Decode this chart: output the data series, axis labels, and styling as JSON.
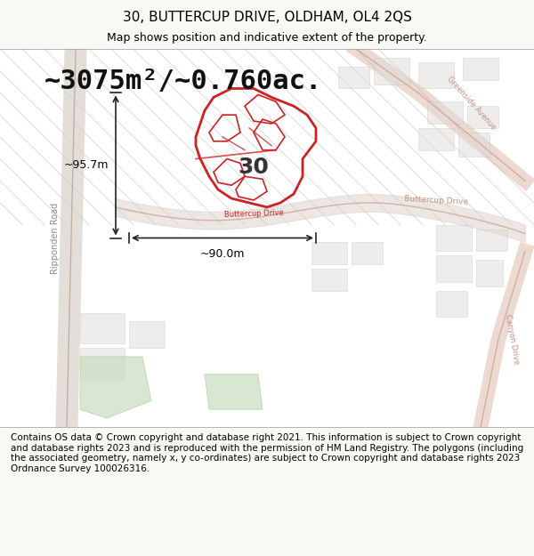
{
  "title_line1": "30, BUTTERCUP DRIVE, OLDHAM, OL4 2QS",
  "title_line2": "Map shows position and indicative extent of the property.",
  "area_text": "~3075m²/~0.760ac.",
  "dim_horizontal": "~90.0m",
  "dim_vertical": "~95.7m",
  "property_number": "30",
  "footer_text": "Contains OS data © Crown copyright and database right 2021. This information is subject to Crown copyright and database rights 2023 and is reproduced with the permission of HM Land Registry. The polygons (including the associated geometry, namely x, y co-ordinates) are subject to Crown copyright and database rights 2023 Ordnance Survey 100026316.",
  "bg_color": "#f5f5f0",
  "map_bg_color": "#ffffff",
  "road_color_main": "#e08080",
  "road_color_light": "#e0a0a0",
  "highlight_color": "#cc2222",
  "green_color": "#c8e0c0",
  "gray_block_color": "#d8d8d8",
  "title_fontsize": 11,
  "subtitle_fontsize": 9,
  "area_fontsize": 22,
  "dim_fontsize": 9,
  "footer_fontsize": 7.5
}
